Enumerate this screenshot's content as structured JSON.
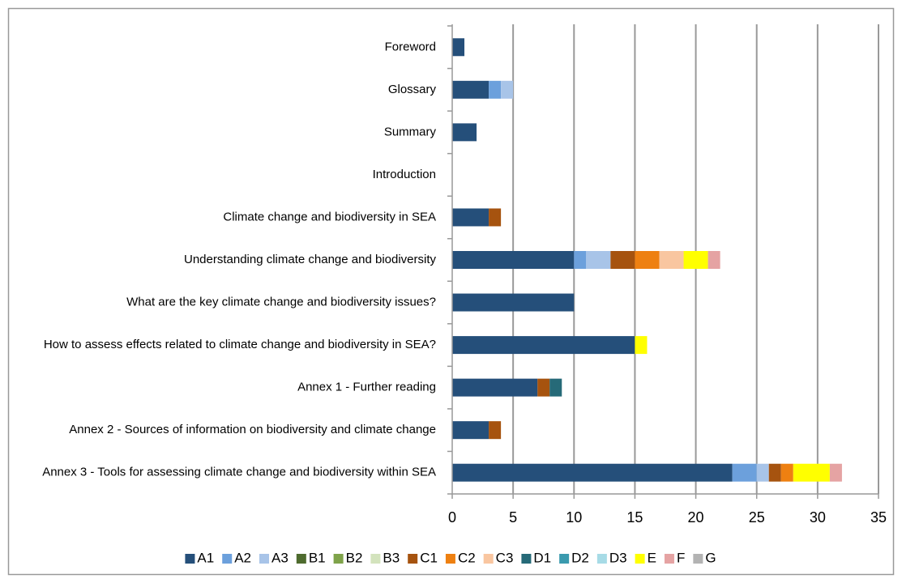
{
  "chart_data": {
    "type": "bar",
    "orientation": "horizontal",
    "stacked": true,
    "categories": [
      "Foreword",
      "Glossary",
      "Summary",
      "Introduction",
      "Climate change and biodiversity in SEA",
      "Understanding climate change and biodiversity",
      "What are the key climate change and biodiversity issues?",
      "How to assess effects related to climate change and biodiversity in SEA?",
      "Annex 1 - Further reading",
      "Annex 2 - Sources of information on biodiversity and climate change",
      "Annex 3 - Tools for assessing climate change and biodiversity within SEA"
    ],
    "series": [
      {
        "name": "A1",
        "color": "#254f7a",
        "values": [
          1,
          3,
          2,
          0,
          3,
          10,
          10,
          15,
          7,
          3,
          23
        ]
      },
      {
        "name": "A2",
        "color": "#6ca0dc",
        "values": [
          0,
          1,
          0,
          0,
          0,
          1,
          0,
          0,
          0,
          0,
          2
        ]
      },
      {
        "name": "A3",
        "color": "#a8c4e8",
        "values": [
          0,
          1,
          0,
          0,
          0,
          2,
          0,
          0,
          0,
          0,
          1
        ]
      },
      {
        "name": "B1",
        "color": "#4e6b2e",
        "values": [
          0,
          0,
          0,
          0,
          0,
          0,
          0,
          0,
          0,
          0,
          0
        ]
      },
      {
        "name": "B2",
        "color": "#7fa34a",
        "values": [
          0,
          0,
          0,
          0,
          0,
          0,
          0,
          0,
          0,
          0,
          0
        ]
      },
      {
        "name": "B3",
        "color": "#d3e3bd",
        "values": [
          0,
          0,
          0,
          0,
          0,
          0,
          0,
          0,
          0,
          0,
          0
        ]
      },
      {
        "name": "C1",
        "color": "#a6530f",
        "values": [
          0,
          0,
          0,
          0,
          1,
          2,
          0,
          0,
          1,
          1,
          1
        ]
      },
      {
        "name": "C2",
        "color": "#ee8011",
        "values": [
          0,
          0,
          0,
          0,
          0,
          2,
          0,
          0,
          0,
          0,
          1
        ]
      },
      {
        "name": "C3",
        "color": "#f9c6a0",
        "values": [
          0,
          0,
          0,
          0,
          0,
          2,
          0,
          0,
          0,
          0,
          0
        ]
      },
      {
        "name": "D1",
        "color": "#266a78",
        "values": [
          0,
          0,
          0,
          0,
          0,
          0,
          0,
          0,
          1,
          0,
          0
        ]
      },
      {
        "name": "D2",
        "color": "#3a9aae",
        "values": [
          0,
          0,
          0,
          0,
          0,
          0,
          0,
          0,
          0,
          0,
          0
        ]
      },
      {
        "name": "D3",
        "color": "#a7dbe6",
        "values": [
          0,
          0,
          0,
          0,
          0,
          0,
          0,
          0,
          0,
          0,
          0
        ]
      },
      {
        "name": "E",
        "color": "#ffff00",
        "values": [
          0,
          0,
          0,
          0,
          0,
          2,
          0,
          1,
          0,
          0,
          3
        ]
      },
      {
        "name": "F",
        "color": "#e5a3a3",
        "values": [
          0,
          0,
          0,
          0,
          0,
          1,
          0,
          0,
          0,
          0,
          1
        ]
      },
      {
        "name": "G",
        "color": "#b3b3b3",
        "values": [
          0,
          0,
          0,
          0,
          0,
          0,
          0,
          0,
          0,
          0,
          0
        ]
      }
    ],
    "xlim": [
      0,
      35
    ],
    "xticks": [
      0,
      5,
      10,
      15,
      20,
      25,
      30,
      35
    ],
    "grid": true,
    "legend": "bottom"
  }
}
